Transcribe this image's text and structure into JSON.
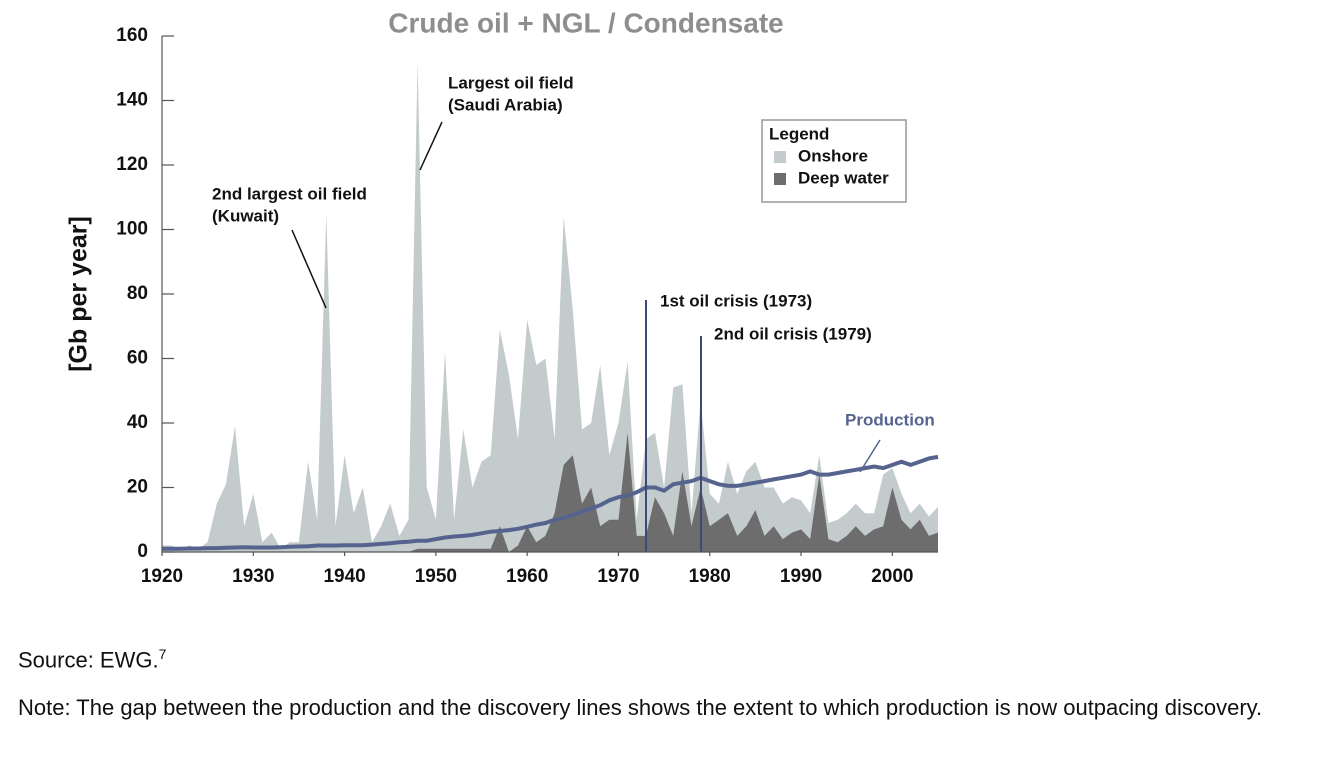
{
  "chart_data": {
    "type": "area",
    "title": "Crude oil + NGL / Condensate",
    "y_label": "[Gb per year]",
    "x": [
      1920,
      1921,
      1922,
      1923,
      1924,
      1925,
      1926,
      1927,
      1928,
      1929,
      1930,
      1931,
      1932,
      1933,
      1934,
      1935,
      1936,
      1937,
      1938,
      1939,
      1940,
      1941,
      1942,
      1943,
      1944,
      1945,
      1946,
      1947,
      1948,
      1949,
      1950,
      1951,
      1952,
      1953,
      1954,
      1955,
      1956,
      1957,
      1958,
      1959,
      1960,
      1961,
      1962,
      1963,
      1964,
      1965,
      1966,
      1967,
      1968,
      1969,
      1970,
      1971,
      1972,
      1973,
      1974,
      1975,
      1976,
      1977,
      1978,
      1979,
      1980,
      1981,
      1982,
      1983,
      1984,
      1985,
      1986,
      1987,
      1988,
      1989,
      1990,
      1991,
      1992,
      1993,
      1994,
      1995,
      1996,
      1997,
      1998,
      1999,
      2000,
      2001,
      2002,
      2003,
      2004,
      2005
    ],
    "series": [
      {
        "name": "Onshore",
        "type": "area",
        "color": "#c3cbcc",
        "values": [
          2,
          2,
          1,
          2,
          1,
          3,
          15,
          21,
          39,
          8,
          18,
          3,
          6,
          1,
          3,
          3,
          28,
          10,
          105,
          8,
          30,
          12,
          20,
          3,
          8,
          15,
          5,
          10,
          152,
          20,
          10,
          62,
          10,
          38,
          20,
          28,
          30,
          69,
          55,
          35,
          72,
          58,
          60,
          35,
          104,
          75,
          38,
          40,
          58,
          30,
          40,
          59,
          10,
          35,
          37,
          20,
          51,
          52,
          12,
          47,
          18,
          15,
          28,
          18,
          25,
          28,
          20,
          20,
          15,
          17,
          16,
          12,
          30,
          9,
          10,
          12,
          15,
          12,
          12,
          24,
          26,
          18,
          12,
          15,
          11,
          14
        ]
      },
      {
        "name": "Deep water",
        "type": "area",
        "color": "#6d6d6d",
        "values": [
          0,
          0,
          0,
          0,
          0,
          0,
          0,
          0,
          0,
          0,
          0,
          0,
          0,
          0,
          0,
          0,
          0,
          0,
          0,
          0,
          0,
          0,
          0,
          0,
          0,
          0,
          0,
          0,
          1,
          1,
          1,
          1,
          1,
          1,
          1,
          1,
          1,
          8,
          0,
          2,
          8,
          3,
          5,
          12,
          27,
          30,
          15,
          20,
          8,
          10,
          10,
          37,
          5,
          5,
          17,
          12,
          5,
          25,
          8,
          20,
          8,
          10,
          12,
          5,
          8,
          13,
          5,
          8,
          4,
          6,
          7,
          4,
          24,
          4,
          3,
          5,
          8,
          5,
          7,
          8,
          20,
          10,
          7,
          10,
          5,
          6
        ]
      },
      {
        "name": "Production",
        "type": "line",
        "color": "#56638f",
        "values": [
          1,
          1,
          1,
          1.1,
          1.1,
          1.2,
          1.2,
          1.3,
          1.4,
          1.5,
          1.4,
          1.4,
          1.4,
          1.5,
          1.6,
          1.7,
          1.8,
          2,
          2,
          2,
          2.1,
          2.1,
          2.1,
          2.3,
          2.5,
          2.7,
          3,
          3.2,
          3.5,
          3.5,
          4,
          4.5,
          4.8,
          5,
          5.3,
          5.8,
          6.3,
          6.5,
          6.8,
          7.2,
          7.8,
          8.5,
          9,
          10,
          10.5,
          11.5,
          12.5,
          13.5,
          14.5,
          16,
          17,
          17.5,
          18.5,
          20,
          20,
          19,
          21,
          21.5,
          22,
          23,
          22,
          21,
          20.5,
          20.5,
          21,
          21.5,
          22,
          22.5,
          23,
          23.5,
          24,
          25,
          24,
          24,
          24.5,
          25,
          25.5,
          26,
          26.5,
          26,
          27,
          28,
          27,
          28,
          29,
          29.5
        ]
      }
    ],
    "xlim": [
      1920,
      2005
    ],
    "xticks": [
      1920,
      1930,
      1940,
      1950,
      1960,
      1970,
      1980,
      1990,
      2000
    ],
    "ylim": [
      0,
      160
    ],
    "yticks": [
      0,
      20,
      40,
      60,
      80,
      100,
      120,
      140,
      160
    ],
    "legend_title": "Legend",
    "legend": "upper right",
    "annotations": [
      {
        "lines": [
          "Largest oil field",
          "(Saudi Arabia)"
        ]
      },
      {
        "lines": [
          "2nd largest oil field",
          "(Kuwait)"
        ]
      },
      {
        "lines": [
          "1st oil crisis (1973)"
        ]
      },
      {
        "lines": [
          "2nd oil crisis (1979)"
        ]
      }
    ]
  },
  "source": "Source: EWG.",
  "source_ref": "7",
  "note": "Note: The gap between the production and the discovery lines shows the extent to which production is now outpacing discovery."
}
